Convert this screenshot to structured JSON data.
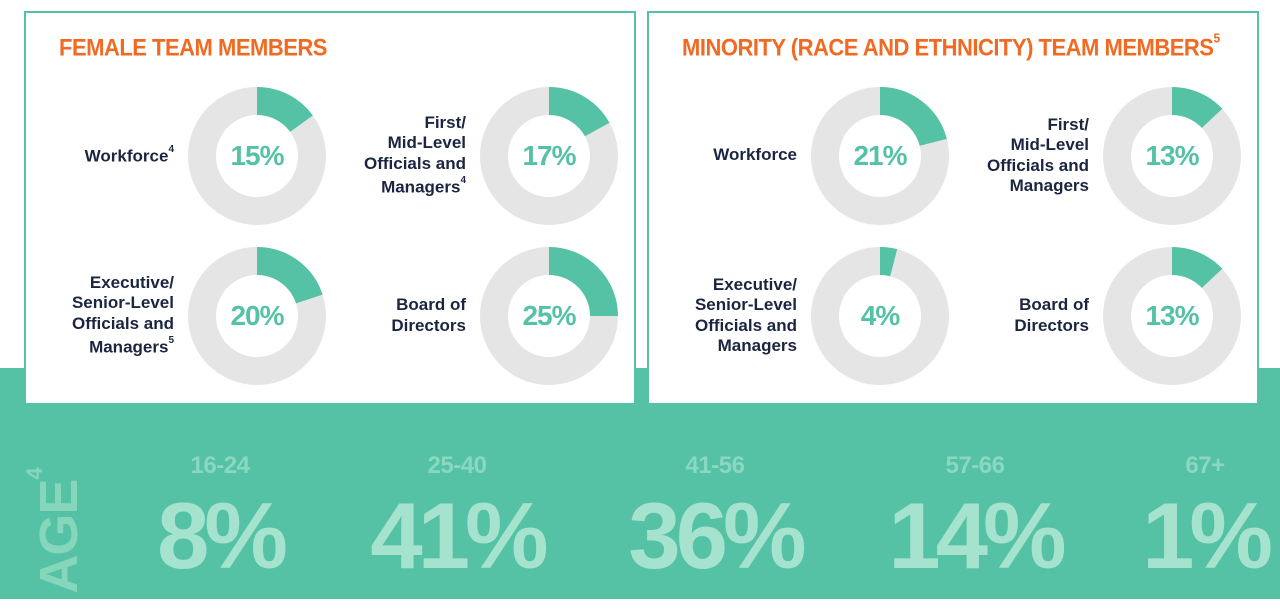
{
  "colors": {
    "teal": "#55c2a5",
    "track": "#e5e5e5",
    "orange": "#f26a22",
    "navy": "#1b2540"
  },
  "female": {
    "title": "FEMALE TEAM MEMBERS",
    "title_sup": ""
  },
  "minority": {
    "title": "MINORITY (RACE AND ETHNICITY) TEAM MEMBERS",
    "title_sup": "5"
  },
  "age": {
    "title": "AGE",
    "title_sup": "4"
  },
  "chart_data": [
    {
      "type": "pie",
      "title": "FEMALE TEAM MEMBERS",
      "items": [
        {
          "label": "Workforce",
          "sup": "4",
          "value": 15,
          "display": "15%"
        },
        {
          "label": "First/\nMid-Level\nOfficials and\nManagers",
          "sup": "4",
          "value": 17,
          "display": "17%"
        },
        {
          "label": "Executive/\nSenior-Level\nOfficials and\nManagers",
          "sup": "5",
          "value": 20,
          "display": "20%"
        },
        {
          "label": "Board of\nDirectors",
          "sup": "",
          "value": 25,
          "display": "25%"
        }
      ]
    },
    {
      "type": "pie",
      "title": "MINORITY (RACE AND ETHNICITY) TEAM MEMBERS",
      "items": [
        {
          "label": "Workforce",
          "sup": "",
          "value": 21,
          "display": "21%"
        },
        {
          "label": "First/\nMid-Level\nOfficials and\nManagers",
          "sup": "",
          "value": 13,
          "display": "13%"
        },
        {
          "label": "Executive/\nSenior-Level\nOfficials and\nManagers",
          "sup": "",
          "value": 4,
          "display": "4%"
        },
        {
          "label": "Board of\nDirectors",
          "sup": "",
          "value": 13,
          "display": "13%"
        }
      ]
    },
    {
      "type": "table",
      "title": "AGE",
      "categories": [
        "16-24",
        "25-40",
        "41-56",
        "57-66",
        "67+"
      ],
      "values": [
        8,
        41,
        36,
        14,
        1
      ],
      "display": [
        "8%",
        "41%",
        "36%",
        "14%",
        "1%"
      ]
    }
  ]
}
